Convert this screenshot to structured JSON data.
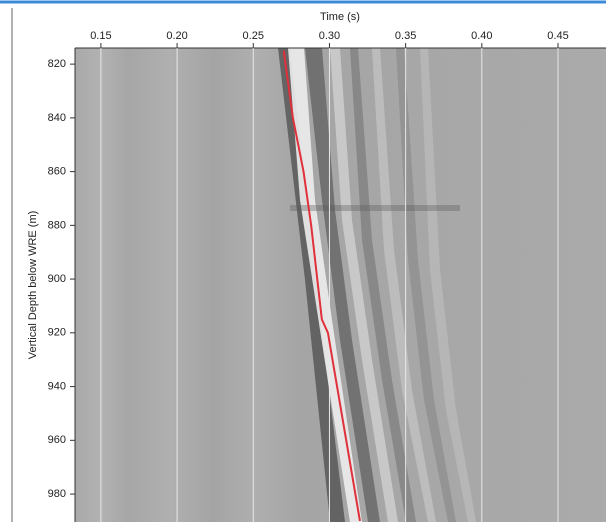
{
  "chart_data": {
    "type": "line",
    "x_label": "Time (s)",
    "y_label": "Vertical Depth below WRE (m)",
    "xlim": [
      0.133,
      0.4815
    ],
    "xticks": [
      {
        "value": 0.15,
        "label": "0.15"
      },
      {
        "value": 0.2,
        "label": "0.20"
      },
      {
        "value": 0.25,
        "label": "0.25"
      },
      {
        "value": 0.3,
        "label": "0.30"
      },
      {
        "value": 0.35,
        "label": "0.35"
      },
      {
        "value": 0.4,
        "label": "0.40"
      },
      {
        "value": 0.45,
        "label": "0.45"
      }
    ],
    "ylim": [
      814,
      990.4
    ],
    "y_inverted": true,
    "yticks": [
      820,
      840,
      860,
      880,
      900,
      920,
      940,
      960,
      980
    ],
    "grid": true,
    "series": [
      {
        "color": "#e0303a",
        "x": [
          0.27,
          0.276,
          0.283,
          0.288,
          0.292,
          0.295,
          0.299,
          0.305,
          0.311,
          0.317,
          0.32
        ],
        "values": [
          815,
          840,
          860,
          880,
          900,
          915,
          920,
          940,
          960,
          980,
          990
        ]
      }
    ]
  }
}
